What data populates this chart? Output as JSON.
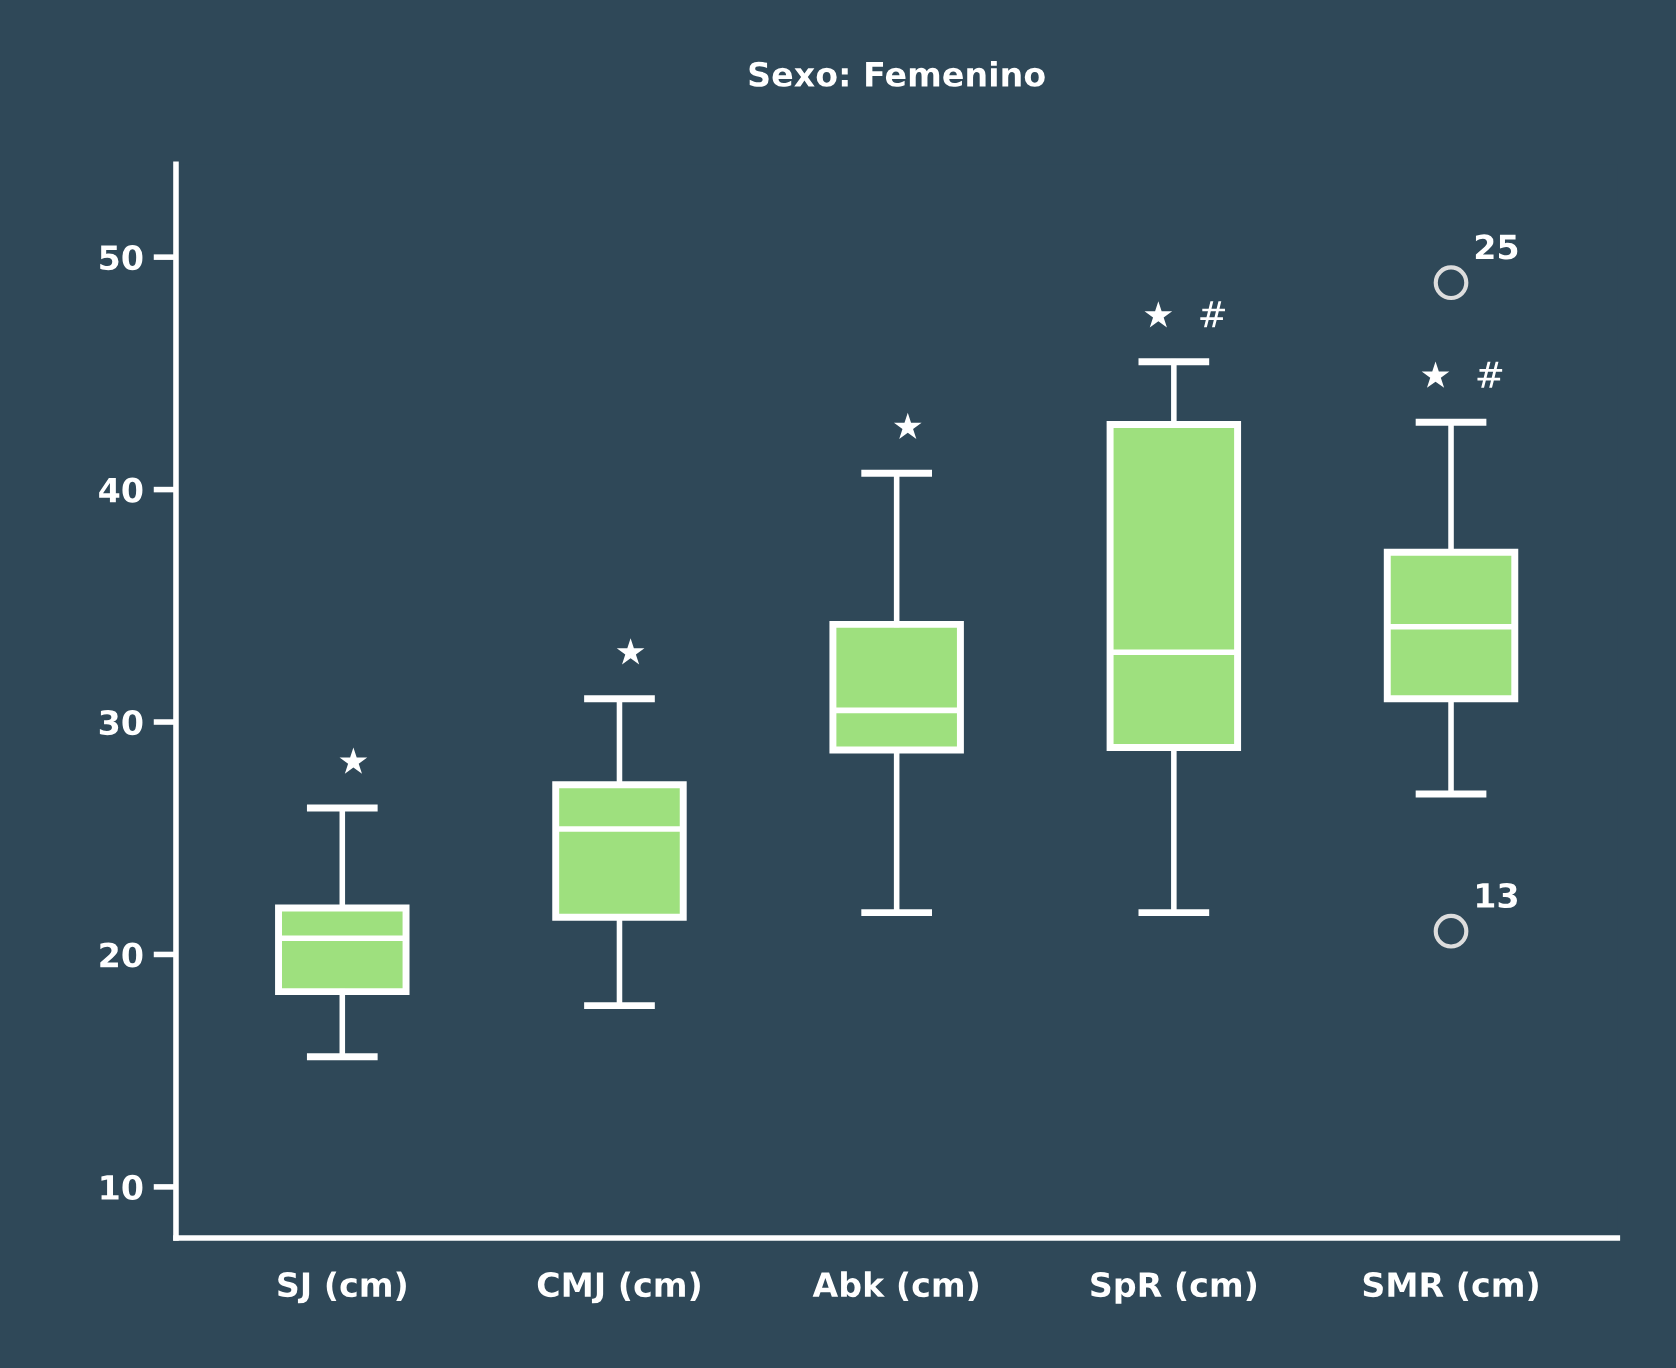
{
  "chart_data": {
    "type": "box",
    "title": "Sexo: Femenino",
    "categories": [
      "SJ (cm)",
      "CMJ (cm)",
      "Abk (cm)",
      "SpR (cm)",
      "SMR (cm)"
    ],
    "boxes": [
      {
        "low": 15.6,
        "q1": 18.4,
        "median": 20.7,
        "q3": 22.0,
        "high": 26.3
      },
      {
        "low": 17.8,
        "q1": 21.6,
        "median": 25.4,
        "q3": 27.3,
        "high": 31.0
      },
      {
        "low": 21.8,
        "q1": 28.8,
        "median": 30.5,
        "q3": 34.2,
        "high": 40.7
      },
      {
        "low": 21.8,
        "q1": 28.9,
        "median": 33.0,
        "q3": 42.8,
        "high": 45.5
      },
      {
        "low": 26.9,
        "q1": 31.0,
        "median": 34.1,
        "q3": 37.3,
        "high": 42.9,
        "outliers": [
          48.9,
          21.0
        ]
      }
    ],
    "color": "#9ee07e",
    "ylim": [
      7.8,
      54
    ],
    "yticks": [
      10,
      20,
      30,
      40,
      50
    ],
    "grid": false,
    "annotations": [
      "★",
      "★",
      "★",
      "★  #",
      "★  #",
      "25",
      "13"
    ]
  }
}
